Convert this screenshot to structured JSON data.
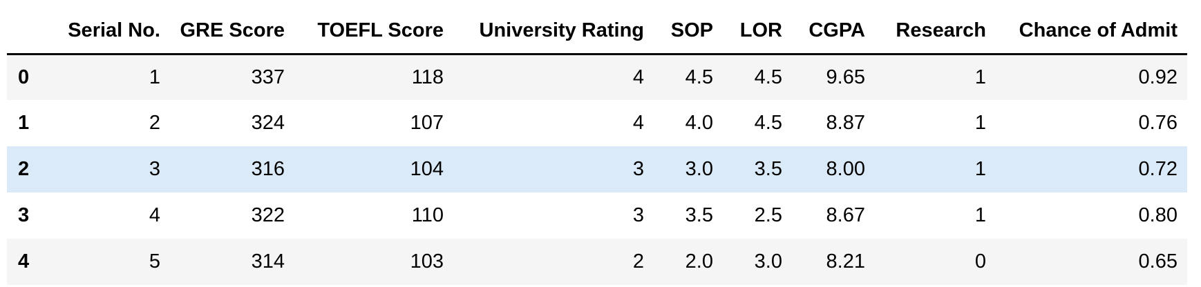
{
  "table": {
    "index_header": "",
    "columns": [
      "Serial No.",
      "GRE Score",
      "TOEFL Score",
      "University Rating",
      "SOP",
      "LOR",
      "CGPA",
      "Research",
      "Chance of Admit"
    ],
    "rows": [
      {
        "index": "0",
        "cells": [
          "1",
          "337",
          "118",
          "4",
          "4.5",
          "4.5",
          "9.65",
          "1",
          "0.92"
        ]
      },
      {
        "index": "1",
        "cells": [
          "2",
          "324",
          "107",
          "4",
          "4.0",
          "4.5",
          "8.87",
          "1",
          "0.76"
        ]
      },
      {
        "index": "2",
        "cells": [
          "3",
          "316",
          "104",
          "3",
          "3.0",
          "3.5",
          "8.00",
          "1",
          "0.72"
        ]
      },
      {
        "index": "3",
        "cells": [
          "4",
          "322",
          "110",
          "3",
          "3.5",
          "2.5",
          "8.67",
          "1",
          "0.80"
        ]
      },
      {
        "index": "4",
        "cells": [
          "5",
          "314",
          "103",
          "2",
          "2.0",
          "3.0",
          "8.21",
          "0",
          "0.65"
        ]
      }
    ],
    "highlighted_row": 2
  },
  "colors": {
    "row_stripe": "#f5f5f5",
    "row_plain": "#ffffff",
    "row_hover": "#dbeaf9",
    "header_rule": "#000000",
    "text": "#000000"
  }
}
